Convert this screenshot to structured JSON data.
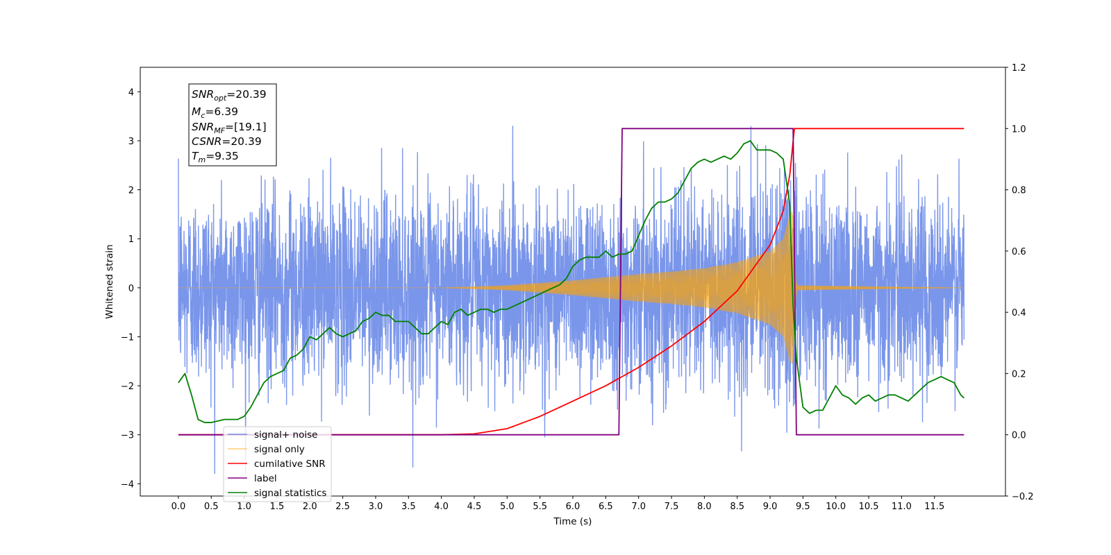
{
  "chart_data": {
    "type": "line",
    "xlabel": "Time (s)",
    "ylabel": "Whitened strain",
    "xlim": [
      -0.58,
      12.58
    ],
    "ylim": [
      -4.25,
      4.5
    ],
    "ylim_right": [
      -0.2,
      1.2
    ],
    "x_ticks": [
      "0.0",
      "0.5",
      "1.0",
      "1.5",
      "2.0",
      "2.5",
      "3.0",
      "3.5",
      "4.0",
      "4.5",
      "5.0",
      "5.5",
      "6.0",
      "6.5",
      "7.0",
      "7.5",
      "8.0",
      "8.5",
      "9.0",
      "9.5",
      "10.0",
      "10.5",
      "11.0",
      "11.5"
    ],
    "y_ticks_left": [
      "4",
      "3",
      "2",
      "1",
      "0",
      "−1",
      "−2",
      "−3",
      "−4"
    ],
    "y_ticks_right": [
      "1.2",
      "1.0",
      "0.8",
      "0.6",
      "0.4",
      "0.2",
      "0.0",
      "−0.2"
    ],
    "legend_position": "lower-left",
    "grid": false,
    "annotation": {
      "snr_opt": "=20.39",
      "mc": "=6.39",
      "snr_mf": "=[19.1]",
      "csnr": "=20.39",
      "tm": "=9.35"
    },
    "series": [
      {
        "name": "signal+ noise",
        "color": "#4169e1",
        "axis": "left",
        "description_values": {
          "noise_sigma": 1.0,
          "max_abs": 4.1
        }
      },
      {
        "name": "signal only",
        "color": "#ffa500",
        "axis": "left",
        "envelope": {
          "x": [
            0.0,
            4.0,
            5.0,
            6.0,
            7.0,
            7.5,
            8.0,
            8.5,
            9.0,
            9.2,
            9.3,
            9.35,
            9.4,
            11.95
          ],
          "amplitude": [
            0.0,
            0.0,
            0.05,
            0.15,
            0.28,
            0.33,
            0.4,
            0.52,
            0.75,
            1.0,
            1.5,
            1.6,
            0.05,
            0.0
          ]
        }
      },
      {
        "name": "cumilative SNR",
        "color": "#ff0000",
        "axis": "right",
        "x": [
          0.0,
          4.0,
          4.5,
          5.0,
          5.5,
          6.0,
          6.5,
          7.0,
          7.5,
          8.0,
          8.5,
          9.0,
          9.2,
          9.3,
          9.36,
          9.37,
          11.95
        ],
        "y": [
          0.0,
          0.0,
          0.003,
          0.02,
          0.06,
          0.11,
          0.16,
          0.22,
          0.29,
          0.37,
          0.47,
          0.62,
          0.73,
          0.85,
          0.98,
          1.0,
          1.0
        ]
      },
      {
        "name": "label",
        "color": "#800080",
        "axis": "right",
        "x": [
          0.0,
          6.7,
          6.75,
          9.35,
          9.4,
          11.95
        ],
        "y": [
          0.0,
          0.0,
          1.0,
          1.0,
          0.0,
          0.0
        ]
      },
      {
        "name": "signal statistics",
        "color": "#008000",
        "axis": "right",
        "x": [
          0.0,
          0.1,
          0.2,
          0.3,
          0.4,
          0.5,
          0.6,
          0.7,
          0.8,
          0.9,
          1.0,
          1.1,
          1.2,
          1.3,
          1.4,
          1.5,
          1.6,
          1.7,
          1.8,
          1.9,
          2.0,
          2.1,
          2.2,
          2.3,
          2.4,
          2.5,
          2.6,
          2.7,
          2.8,
          2.9,
          3.0,
          3.1,
          3.2,
          3.3,
          3.4,
          3.5,
          3.6,
          3.7,
          3.8,
          3.9,
          4.0,
          4.1,
          4.2,
          4.3,
          4.4,
          4.5,
          4.6,
          4.7,
          4.8,
          4.9,
          5.0,
          5.1,
          5.2,
          5.3,
          5.4,
          5.5,
          5.6,
          5.7,
          5.8,
          5.9,
          6.0,
          6.1,
          6.2,
          6.3,
          6.4,
          6.5,
          6.6,
          6.7,
          6.8,
          6.9,
          7.0,
          7.1,
          7.2,
          7.3,
          7.4,
          7.5,
          7.6,
          7.7,
          7.8,
          7.9,
          8.0,
          8.1,
          8.2,
          8.3,
          8.4,
          8.5,
          8.6,
          8.7,
          8.8,
          8.9,
          9.0,
          9.1,
          9.2,
          9.3,
          9.35,
          9.4,
          9.5,
          9.6,
          9.7,
          9.8,
          9.9,
          10.0,
          10.1,
          10.2,
          10.3,
          10.4,
          10.5,
          10.6,
          10.7,
          10.8,
          10.9,
          11.0,
          11.1,
          11.2,
          11.3,
          11.4,
          11.5,
          11.6,
          11.7,
          11.8,
          11.9,
          11.95
        ],
        "y": [
          0.17,
          0.2,
          0.13,
          0.05,
          0.04,
          0.04,
          0.045,
          0.05,
          0.05,
          0.05,
          0.06,
          0.09,
          0.13,
          0.17,
          0.19,
          0.2,
          0.21,
          0.25,
          0.26,
          0.28,
          0.32,
          0.31,
          0.33,
          0.35,
          0.33,
          0.32,
          0.33,
          0.34,
          0.37,
          0.38,
          0.4,
          0.39,
          0.39,
          0.37,
          0.37,
          0.37,
          0.35,
          0.33,
          0.33,
          0.35,
          0.37,
          0.36,
          0.4,
          0.41,
          0.39,
          0.4,
          0.41,
          0.41,
          0.4,
          0.41,
          0.41,
          0.42,
          0.43,
          0.44,
          0.45,
          0.46,
          0.47,
          0.48,
          0.49,
          0.51,
          0.55,
          0.57,
          0.58,
          0.58,
          0.58,
          0.6,
          0.58,
          0.59,
          0.59,
          0.6,
          0.65,
          0.7,
          0.74,
          0.76,
          0.76,
          0.77,
          0.79,
          0.83,
          0.87,
          0.89,
          0.9,
          0.89,
          0.9,
          0.91,
          0.9,
          0.92,
          0.95,
          0.96,
          0.93,
          0.93,
          0.93,
          0.92,
          0.9,
          0.75,
          0.42,
          0.25,
          0.09,
          0.07,
          0.08,
          0.08,
          0.12,
          0.16,
          0.13,
          0.12,
          0.1,
          0.12,
          0.13,
          0.11,
          0.12,
          0.13,
          0.13,
          0.12,
          0.11,
          0.13,
          0.15,
          0.17,
          0.18,
          0.19,
          0.18,
          0.17,
          0.13,
          0.12
        ]
      }
    ]
  }
}
